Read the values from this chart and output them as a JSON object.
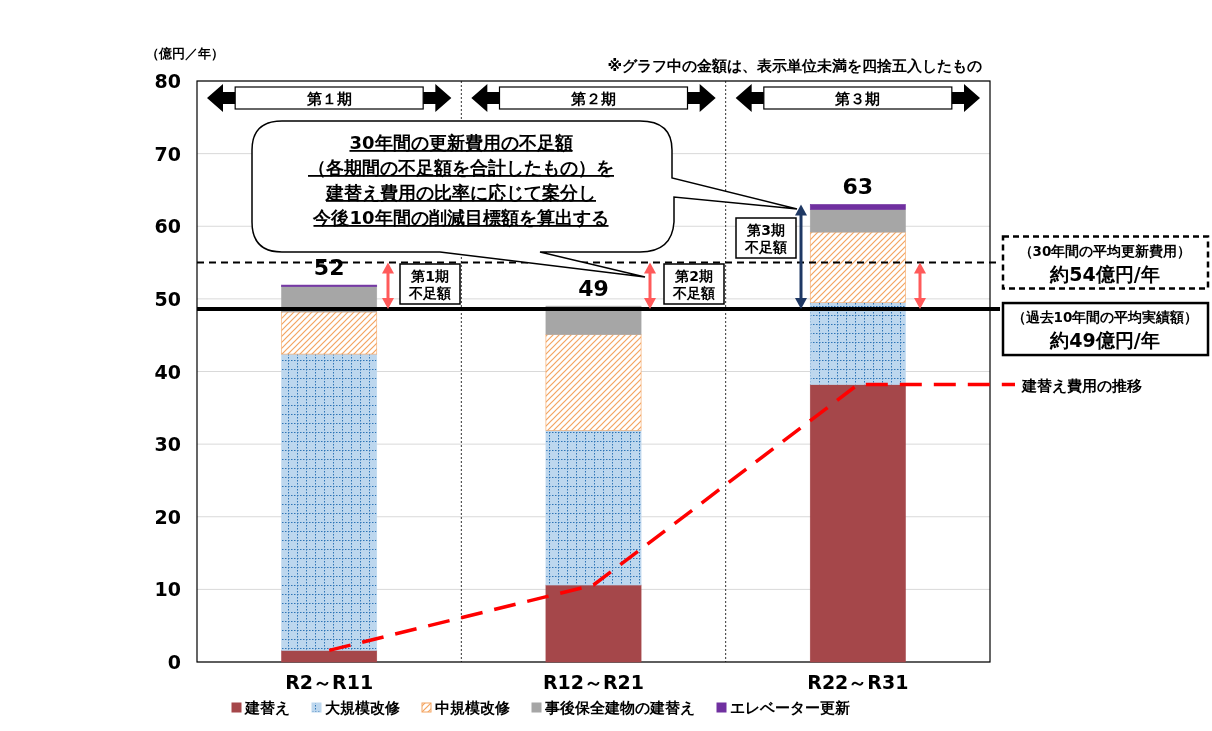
{
  "chart_data": {
    "type": "bar",
    "stacked": true,
    "ylabel": "（億円／年）",
    "categories": [
      "R2～R11",
      "R12～R21",
      "R22～R31"
    ],
    "series": [
      {
        "name": "建替え",
        "color": "#a5474a",
        "values": [
          1.6,
          10.6,
          38.2
        ]
      },
      {
        "name": "大規模改修",
        "color": "#bdd7ee",
        "values": [
          40.8,
          21.3,
          11.3
        ]
      },
      {
        "name": "中規模改修",
        "color": "#f4a460",
        "values": [
          5.8,
          13.2,
          9.7
        ]
      },
      {
        "name": "事後保全建物の建替え",
        "color": "#a6a6a6",
        "values": [
          3.5,
          3.9,
          3.1
        ]
      },
      {
        "name": "エレベーター更新",
        "color": "#7030a0",
        "values": [
          0.2,
          0,
          0.7
        ]
      },
      {
        "name": "建替え費用の推移",
        "type": "line",
        "color": "#ff0000",
        "line_style": "dashed",
        "marker": "none",
        "values": [
          1.6,
          10.6,
          38.2
        ]
      }
    ],
    "ylim": [
      0,
      80
    ],
    "yticks": [
      0,
      10,
      20,
      30,
      40,
      50,
      60,
      70,
      80
    ],
    "grid": "y",
    "legend": "bottom",
    "totals": [
      "52",
      "49",
      "63"
    ],
    "ref_lines": [
      {
        "axis": "y",
        "value": 55,
        "label": "（30年間の平均更新費用）",
        "color": "#000000",
        "line_style": "dashed"
      },
      {
        "axis": "y",
        "value": 48.6,
        "label": "（過去10年間の平均実績額）",
        "color": "#000000",
        "line_style": "solid"
      }
    ],
    "annotations": [
      "※グラフ中の金額は、表示単位未満を四捨五入したもの",
      "第１期",
      "第２期",
      "第３期",
      "第1期",
      "不足額",
      "第2期",
      "不足額",
      "第3期",
      "不足額",
      "30年間の更新費用の不足額",
      "（各期間の不足額を合計したもの）を",
      "建替え費用の比率に応じて案分し",
      "今後10年間の削減目標額を算出する",
      "約54億円/年",
      "約49億円/年"
    ]
  }
}
